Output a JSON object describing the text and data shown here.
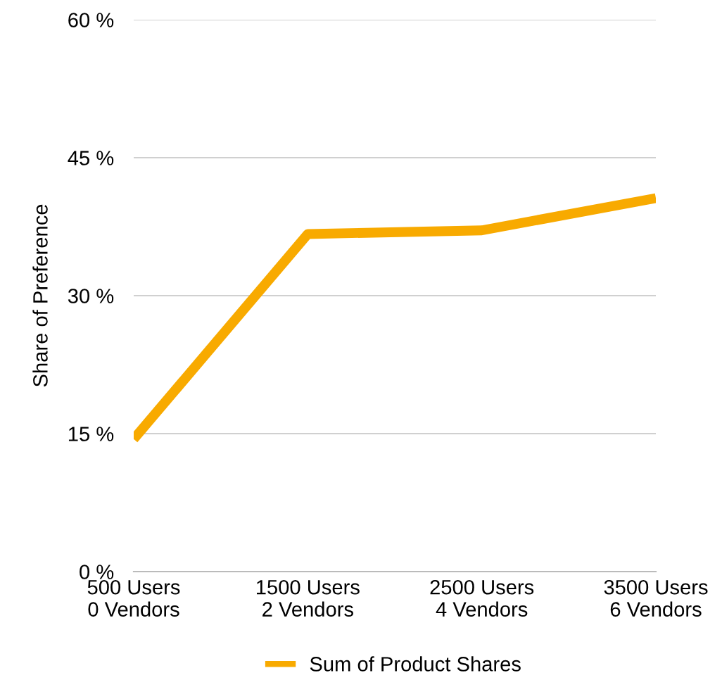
{
  "chart_data": {
    "type": "line",
    "ylabel": "Share of Preference",
    "categories": [
      "500 Users\n0 Vendors",
      "1500 Users\n2 Vendors",
      "2500 Users\n4 Vendors",
      "3500 Users\n6 Vendors"
    ],
    "series": [
      {
        "name": "Sum of Product Shares",
        "color": "#f8aa00",
        "values": [
          14.4,
          36.7,
          37.1,
          40.6
        ]
      }
    ],
    "ylim": [
      0,
      60
    ],
    "yticks": [
      {
        "value": 0,
        "label": "0 %"
      },
      {
        "value": 15,
        "label": "15 %"
      },
      {
        "value": 30,
        "label": "30 %"
      },
      {
        "value": 45,
        "label": "45 %"
      },
      {
        "value": 60,
        "label": "60 %"
      }
    ],
    "grid": "y",
    "legend": "bottom",
    "marker": "none",
    "line_style": "solid"
  }
}
